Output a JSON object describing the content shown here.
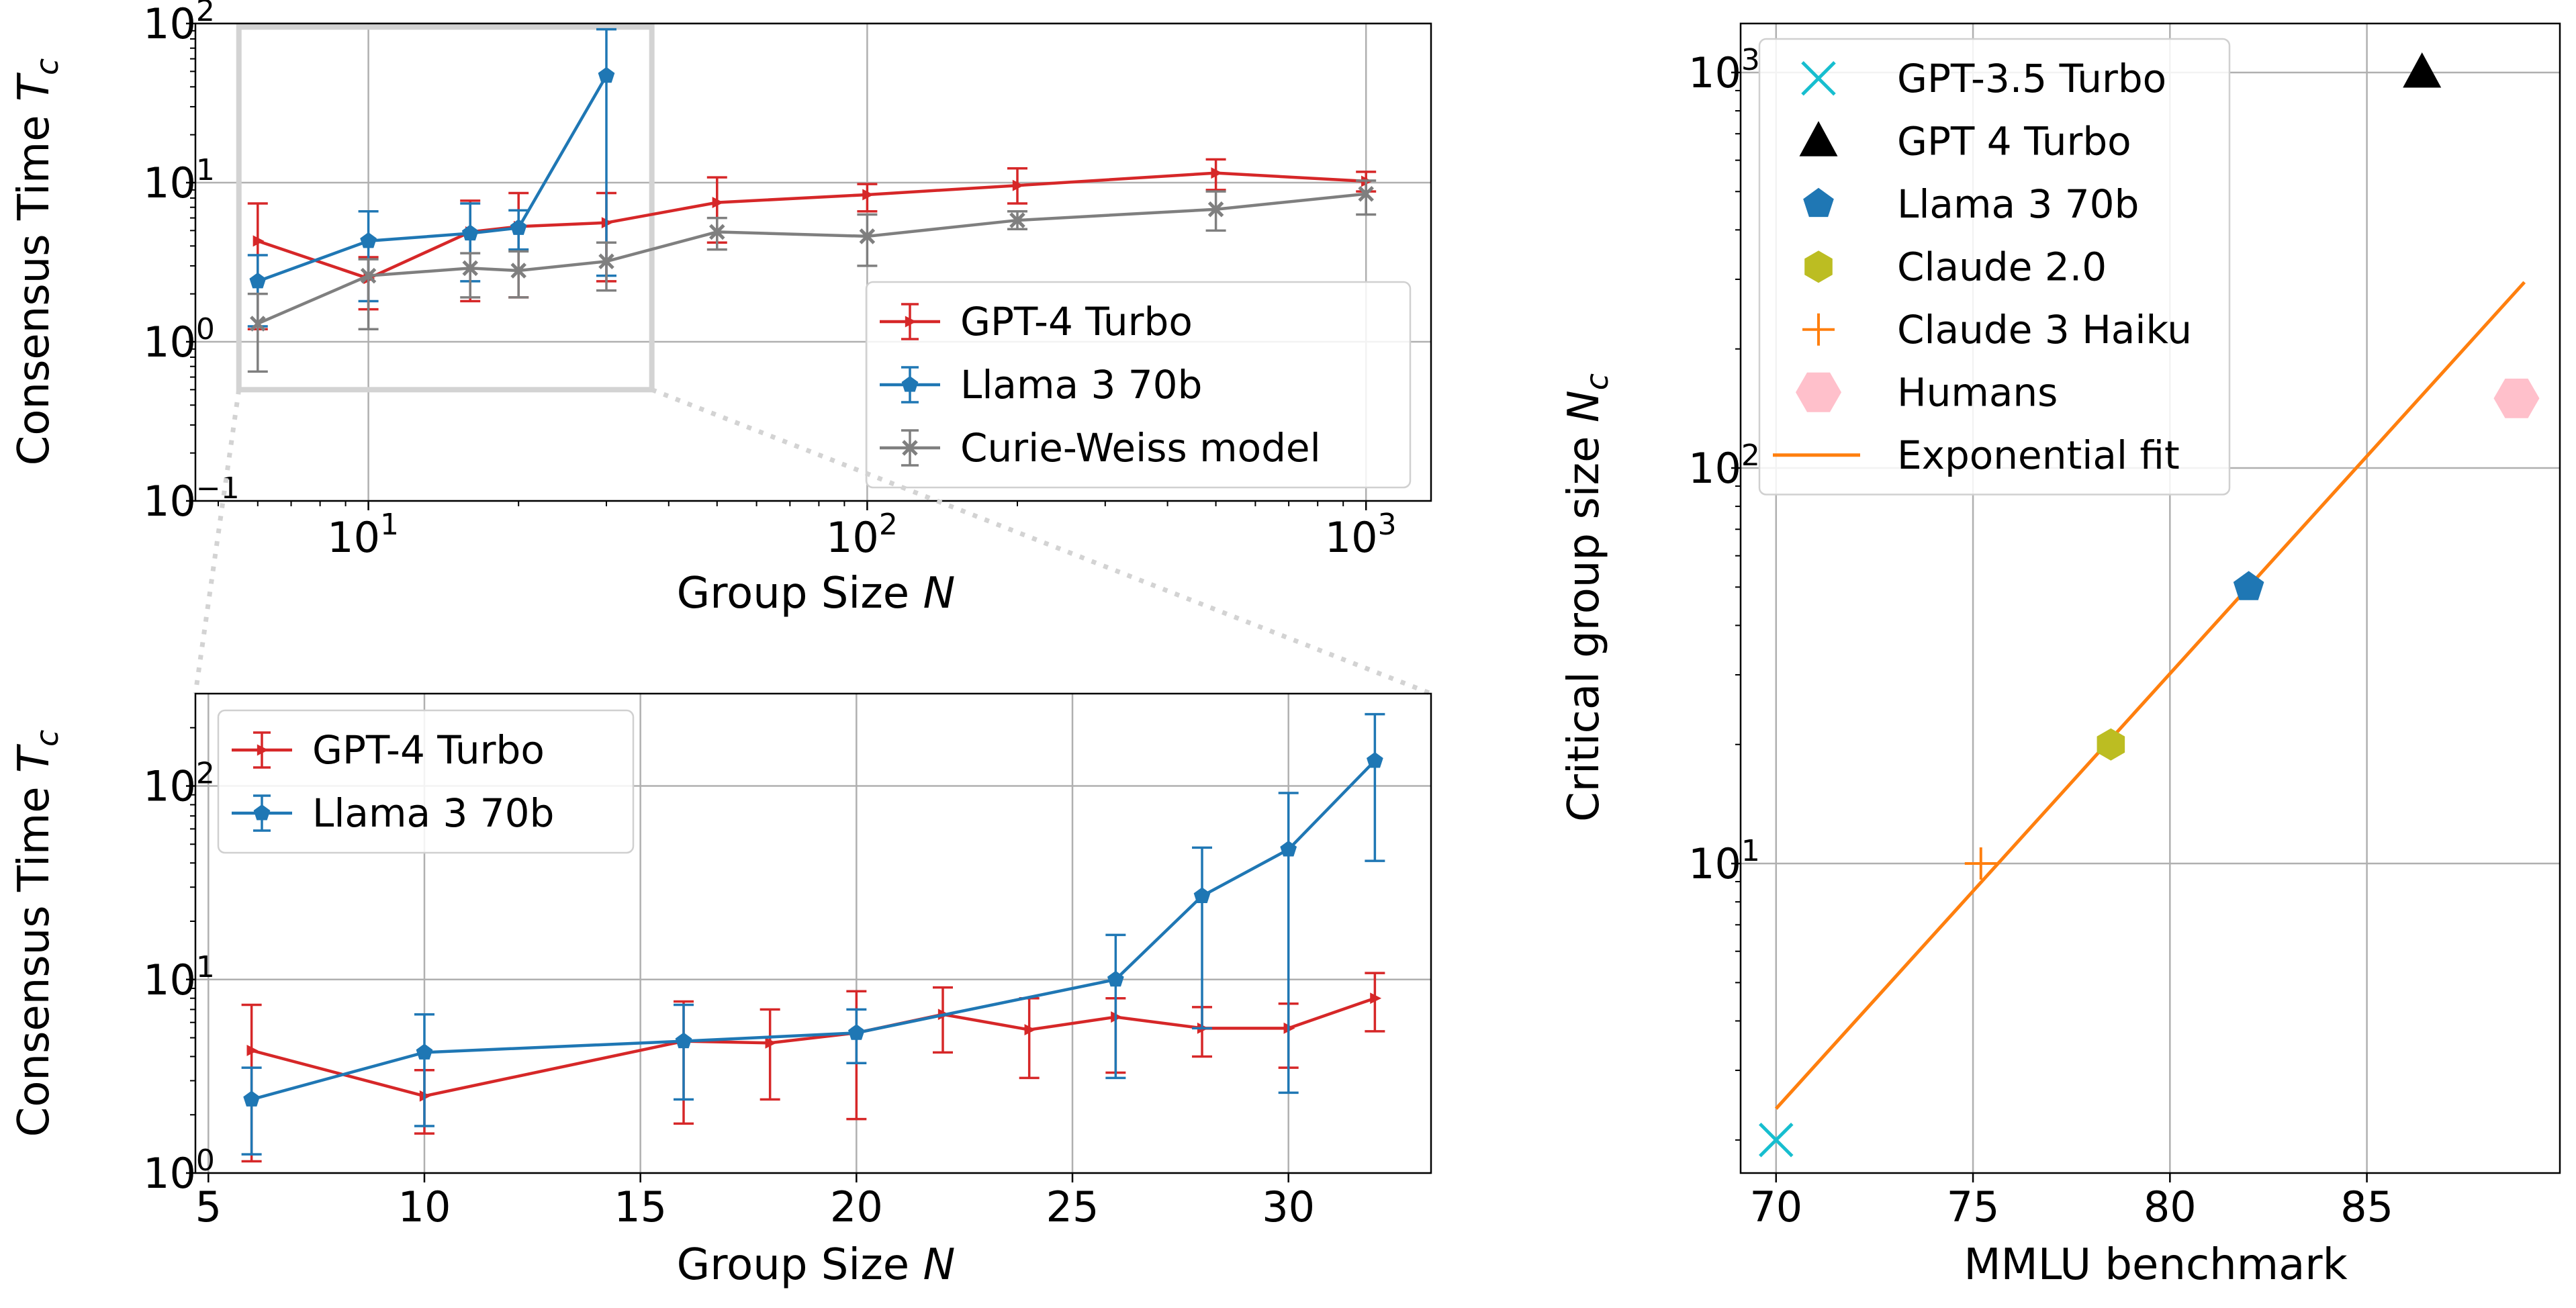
{
  "chart_data": [
    {
      "id": "top-left",
      "type": "line",
      "xscale": "log",
      "yscale": "log",
      "xlabel": "Group Size N",
      "ylabel": "Consensus Time T_c",
      "xlim": [
        4.5,
        1350
      ],
      "ylim": [
        0.1,
        100
      ],
      "xticks": [
        {
          "v": 10,
          "base": "10",
          "exp": "1"
        },
        {
          "v": 100,
          "base": "10",
          "exp": "2"
        },
        {
          "v": 1000,
          "base": "10",
          "exp": "3"
        }
      ],
      "yticks": [
        {
          "v": 0.1,
          "base": "10",
          "exp": "−1"
        },
        {
          "v": 1,
          "base": "10",
          "exp": "0"
        },
        {
          "v": 10,
          "base": "10",
          "exp": "1"
        },
        {
          "v": 100,
          "base": "10",
          "exp": "2"
        }
      ],
      "legend": "center-right",
      "inset_box": {
        "x": [
          5.5,
          37
        ],
        "y": [
          0.5,
          95
        ]
      },
      "series": [
        {
          "name": "GPT-4 Turbo",
          "color": "#d62728",
          "marker": "triangle-right",
          "x": [
            6,
            10,
            16,
            20,
            30,
            50,
            100,
            200,
            500,
            1000
          ],
          "y": [
            4.3,
            2.5,
            4.9,
            5.3,
            5.6,
            7.5,
            8.4,
            9.6,
            11.5,
            10.2
          ],
          "ylo": [
            1.2,
            1.6,
            1.8,
            1.9,
            2.4,
            4.2,
            6.6,
            7.4,
            9.0,
            8.8
          ],
          "yhi": [
            7.4,
            3.4,
            7.7,
            8.6,
            8.6,
            10.8,
            9.8,
            12.3,
            14.0,
            11.7
          ]
        },
        {
          "name": "Llama 3 70b",
          "color": "#1f77b4",
          "marker": "pentagon",
          "x": [
            6,
            10,
            16,
            20,
            30
          ],
          "y": [
            2.4,
            4.3,
            4.8,
            5.2,
            47
          ],
          "ylo": [
            1.25,
            1.8,
            2.4,
            3.8,
            2.6
          ],
          "yhi": [
            3.5,
            6.6,
            7.4,
            6.7,
            92
          ]
        },
        {
          "name": "Curie-Weiss model",
          "color": "#7f7f7f",
          "marker": "x",
          "x": [
            6,
            10,
            16,
            20,
            30,
            50,
            100,
            200,
            500,
            1000
          ],
          "y": [
            1.3,
            2.6,
            2.9,
            2.8,
            3.2,
            4.9,
            4.6,
            5.8,
            6.8,
            8.5
          ],
          "ylo": [
            0.65,
            1.2,
            1.9,
            1.9,
            2.1,
            3.8,
            3.0,
            5.1,
            5.0,
            6.3
          ],
          "yhi": [
            2.0,
            3.3,
            3.6,
            3.7,
            4.2,
            6.0,
            6.3,
            6.6,
            8.8,
            10.3
          ]
        }
      ]
    },
    {
      "id": "bottom-left",
      "type": "line",
      "xscale": "linear",
      "yscale": "log",
      "xlabel": "Group Size N",
      "ylabel": "Consensus Time T_c",
      "xlim": [
        4.7,
        33.3
      ],
      "ylim": [
        1,
        300
      ],
      "xticks": [
        {
          "v": 5,
          "label": "5"
        },
        {
          "v": 10,
          "label": "10"
        },
        {
          "v": 15,
          "label": "15"
        },
        {
          "v": 20,
          "label": "20"
        },
        {
          "v": 25,
          "label": "25"
        },
        {
          "v": 30,
          "label": "30"
        }
      ],
      "yticks": [
        {
          "v": 1,
          "base": "10",
          "exp": "0"
        },
        {
          "v": 10,
          "base": "10",
          "exp": "1"
        },
        {
          "v": 100,
          "base": "10",
          "exp": "2"
        }
      ],
      "legend": "top-left",
      "series": [
        {
          "name": "GPT-4 Turbo",
          "color": "#d62728",
          "marker": "triangle-right",
          "x": [
            6,
            10,
            16,
            18,
            20,
            22,
            24,
            26,
            28,
            30,
            32
          ],
          "y": [
            4.3,
            2.5,
            4.8,
            4.7,
            5.3,
            6.6,
            5.5,
            6.4,
            5.6,
            5.6,
            8.0
          ],
          "ylo": [
            1.15,
            1.6,
            1.8,
            2.4,
            1.9,
            4.2,
            3.1,
            3.3,
            4.0,
            3.5,
            5.4
          ],
          "yhi": [
            7.4,
            3.4,
            7.7,
            7.0,
            8.7,
            9.1,
            8.0,
            8.0,
            7.2,
            7.5,
            10.8
          ]
        },
        {
          "name": "Llama 3 70b",
          "color": "#1f77b4",
          "marker": "pentagon",
          "x": [
            6,
            10,
            16,
            20,
            26,
            28,
            30,
            32
          ],
          "y": [
            2.4,
            4.2,
            4.8,
            5.3,
            10.0,
            27,
            47,
            135
          ],
          "ylo": [
            1.25,
            1.75,
            2.4,
            3.7,
            3.1,
            5.6,
            2.6,
            41
          ],
          "yhi": [
            3.5,
            6.6,
            7.4,
            7.0,
            17.0,
            48,
            92,
            235
          ]
        }
      ]
    },
    {
      "id": "right",
      "type": "scatter",
      "xscale": "linear",
      "yscale": "log",
      "xlabel": "MMLU benchmark",
      "ylabel": "Critical group size N_c",
      "xlim": [
        69.1,
        89.9
      ],
      "ylim": [
        1.65,
        1330
      ],
      "xticks": [
        {
          "v": 70,
          "label": "70"
        },
        {
          "v": 75,
          "label": "75"
        },
        {
          "v": 80,
          "label": "80"
        },
        {
          "v": 85,
          "label": "85"
        }
      ],
      "yticks": [
        {
          "v": 10,
          "base": "10",
          "exp": "1"
        },
        {
          "v": 100,
          "base": "10",
          "exp": "2"
        },
        {
          "v": 1000,
          "base": "10",
          "exp": "3"
        }
      ],
      "legend": "top-left",
      "points": [
        {
          "name": "GPT-3.5 Turbo",
          "x": 70.0,
          "y": 2,
          "marker": "x",
          "color": "#17becf"
        },
        {
          "name": "GPT 4 Turbo",
          "x": 86.4,
          "y": 1000,
          "marker": "triangle-up",
          "color": "#000000"
        },
        {
          "name": "Llama 3 70b",
          "x": 82.0,
          "y": 50,
          "marker": "pentagon",
          "color": "#1f77b4"
        },
        {
          "name": "Claude 2.0",
          "x": 78.5,
          "y": 20,
          "marker": "hexagon",
          "color": "#bcbd22"
        },
        {
          "name": "Claude 3 Haiku",
          "x": 75.2,
          "y": 10,
          "marker": "plus",
          "color": "#ff7f0e"
        },
        {
          "name": "Humans",
          "x": 88.8,
          "y": 150,
          "marker": "big-hexagon",
          "color": "#ffc0cb"
        }
      ],
      "fit": {
        "name": "Exponential fit",
        "color": "#ff7f0e",
        "x": [
          70,
          89
        ],
        "y": [
          2.4,
          295
        ]
      }
    }
  ]
}
